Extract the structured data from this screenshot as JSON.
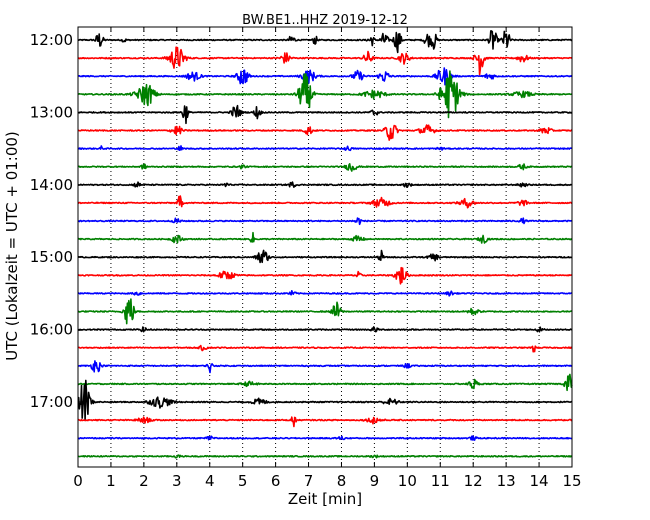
{
  "chart_data": {
    "type": "line",
    "title": "BW.BE1..HHZ 2019-12-12",
    "xlabel": "Zeit  [min]",
    "ylabel": "UTC (Lokalzeit = UTC + 01:00)",
    "xlim": [
      0,
      15
    ],
    "x_ticks": [
      "0",
      "1",
      "2",
      "3",
      "4",
      "5",
      "6",
      "7",
      "8",
      "9",
      "10",
      "11",
      "12",
      "13",
      "14",
      "15"
    ],
    "y_ticks": [
      "12:00",
      "13:00",
      "14:00",
      "15:00",
      "16:00",
      "17:00"
    ],
    "grid": {
      "vertical_dotted": true
    },
    "trace_colors": [
      "#000000",
      "#ff0000",
      "#0000ff",
      "#008000"
    ],
    "series": [
      {
        "start": "12:00",
        "events": [
          [
            0.65,
            0.4,
            0.1
          ],
          [
            1.4,
            0.15,
            0.05
          ],
          [
            6.5,
            0.3,
            0.08
          ],
          [
            7.2,
            0.22,
            0.06
          ],
          [
            8.9,
            0.3,
            0.08
          ],
          [
            9.3,
            0.35,
            0.1
          ],
          [
            9.7,
            0.55,
            0.1
          ],
          [
            10.6,
            0.4,
            0.08
          ],
          [
            10.8,
            0.45,
            0.08
          ],
          [
            12.6,
            0.6,
            0.1
          ],
          [
            13.0,
            0.55,
            0.1
          ]
        ]
      },
      {
        "start": "12:15",
        "events": [
          [
            3.0,
            0.55,
            0.22
          ],
          [
            6.3,
            0.25,
            0.15
          ],
          [
            8.8,
            0.3,
            0.12
          ],
          [
            9.9,
            0.25,
            0.15
          ],
          [
            12.2,
            0.75,
            0.12
          ],
          [
            13.5,
            0.2,
            0.15
          ]
        ]
      },
      {
        "start": "12:30",
        "events": [
          [
            3.5,
            0.2,
            0.2
          ],
          [
            5.0,
            0.45,
            0.15
          ],
          [
            7.0,
            0.3,
            0.2
          ],
          [
            8.5,
            0.25,
            0.15
          ],
          [
            9.3,
            0.28,
            0.15
          ],
          [
            11.1,
            0.4,
            0.2
          ],
          [
            12.5,
            0.15,
            0.15
          ]
        ]
      },
      {
        "start": "12:45",
        "events": [
          [
            2.0,
            0.2,
            0.3
          ],
          [
            2.1,
            0.35,
            0.2
          ],
          [
            6.9,
            0.95,
            0.18
          ],
          [
            9.0,
            0.2,
            0.3
          ],
          [
            11.3,
            1.15,
            0.25
          ],
          [
            13.5,
            0.12,
            0.3
          ]
        ]
      },
      {
        "start": "13:00",
        "events": [
          [
            3.25,
            0.55,
            0.08
          ],
          [
            4.8,
            0.38,
            0.12
          ],
          [
            5.45,
            0.35,
            0.08
          ],
          [
            9.0,
            0.18,
            0.1
          ]
        ]
      },
      {
        "start": "13:15",
        "events": [
          [
            3.0,
            0.22,
            0.15
          ],
          [
            7.0,
            0.2,
            0.12
          ],
          [
            9.5,
            0.5,
            0.15
          ],
          [
            10.6,
            0.25,
            0.2
          ],
          [
            14.2,
            0.18,
            0.15
          ]
        ]
      },
      {
        "start": "13:30",
        "events": [
          [
            0.7,
            0.1,
            0.05
          ],
          [
            3.1,
            0.15,
            0.05
          ],
          [
            8.2,
            0.1,
            0.1
          ],
          [
            11.0,
            0.1,
            0.08
          ]
        ]
      },
      {
        "start": "13:45",
        "events": [
          [
            2.0,
            0.1,
            0.1
          ],
          [
            5.0,
            0.1,
            0.08
          ],
          [
            8.3,
            0.22,
            0.15
          ],
          [
            13.5,
            0.12,
            0.12
          ]
        ]
      },
      {
        "start": "14:00",
        "events": [
          [
            1.8,
            0.12,
            0.1
          ],
          [
            4.5,
            0.12,
            0.08
          ],
          [
            6.5,
            0.12,
            0.1
          ],
          [
            10.0,
            0.12,
            0.1
          ],
          [
            13.5,
            0.12,
            0.1
          ]
        ]
      },
      {
        "start": "14:15",
        "events": [
          [
            3.1,
            0.4,
            0.06
          ],
          [
            9.2,
            0.22,
            0.25
          ],
          [
            11.8,
            0.2,
            0.2
          ],
          [
            13.5,
            0.12,
            0.15
          ]
        ]
      },
      {
        "start": "14:30",
        "events": [
          [
            3.0,
            0.12,
            0.1
          ],
          [
            8.5,
            0.18,
            0.1
          ],
          [
            13.5,
            0.12,
            0.08
          ]
        ]
      },
      {
        "start": "14:45",
        "events": [
          [
            3.0,
            0.18,
            0.15
          ],
          [
            5.3,
            0.3,
            0.05
          ],
          [
            8.5,
            0.15,
            0.15
          ],
          [
            12.3,
            0.18,
            0.12
          ]
        ]
      },
      {
        "start": "15:00",
        "events": [
          [
            5.6,
            0.4,
            0.15
          ],
          [
            9.2,
            0.32,
            0.06
          ],
          [
            10.8,
            0.15,
            0.15
          ]
        ]
      },
      {
        "start": "15:15",
        "events": [
          [
            4.5,
            0.18,
            0.25
          ],
          [
            8.5,
            0.15,
            0.08
          ],
          [
            9.8,
            0.45,
            0.15
          ]
        ]
      },
      {
        "start": "15:30",
        "events": [
          [
            1.8,
            0.1,
            0.1
          ],
          [
            6.5,
            0.1,
            0.1
          ],
          [
            11.3,
            0.1,
            0.1
          ]
        ]
      },
      {
        "start": "15:45",
        "events": [
          [
            1.55,
            0.95,
            0.12
          ],
          [
            7.85,
            0.42,
            0.12
          ],
          [
            12.0,
            0.15,
            0.15
          ]
        ]
      },
      {
        "start": "16:00",
        "events": [
          [
            2.0,
            0.1,
            0.1
          ],
          [
            9.0,
            0.12,
            0.1
          ],
          [
            14.0,
            0.1,
            0.1
          ]
        ]
      },
      {
        "start": "16:15",
        "events": [
          [
            3.8,
            0.12,
            0.1
          ],
          [
            13.85,
            0.3,
            0.04
          ]
        ]
      },
      {
        "start": "16:30",
        "events": [
          [
            0.55,
            0.35,
            0.12
          ],
          [
            4.0,
            0.35,
            0.06
          ],
          [
            10.0,
            0.1,
            0.1
          ]
        ]
      },
      {
        "start": "16:45",
        "events": [
          [
            5.2,
            0.1,
            0.2
          ],
          [
            12.0,
            0.25,
            0.12
          ],
          [
            14.9,
            0.6,
            0.1
          ]
        ]
      },
      {
        "start": "17:00",
        "events": [
          [
            0.2,
            1.1,
            0.15
          ],
          [
            2.5,
            0.25,
            0.3
          ],
          [
            5.5,
            0.15,
            0.2
          ],
          [
            9.5,
            0.15,
            0.2
          ]
        ]
      },
      {
        "start": "17:15",
        "events": [
          [
            2.0,
            0.12,
            0.2
          ],
          [
            6.55,
            0.32,
            0.06
          ],
          [
            9.0,
            0.15,
            0.2
          ]
        ]
      },
      {
        "start": "17:30",
        "events": [
          [
            4.0,
            0.08,
            0.1
          ],
          [
            8.0,
            0.08,
            0.1
          ],
          [
            12.0,
            0.08,
            0.1
          ]
        ]
      },
      {
        "start": "17:45",
        "events": [
          [
            3.0,
            0.06,
            0.1
          ],
          [
            9.0,
            0.06,
            0.1
          ]
        ]
      }
    ]
  }
}
